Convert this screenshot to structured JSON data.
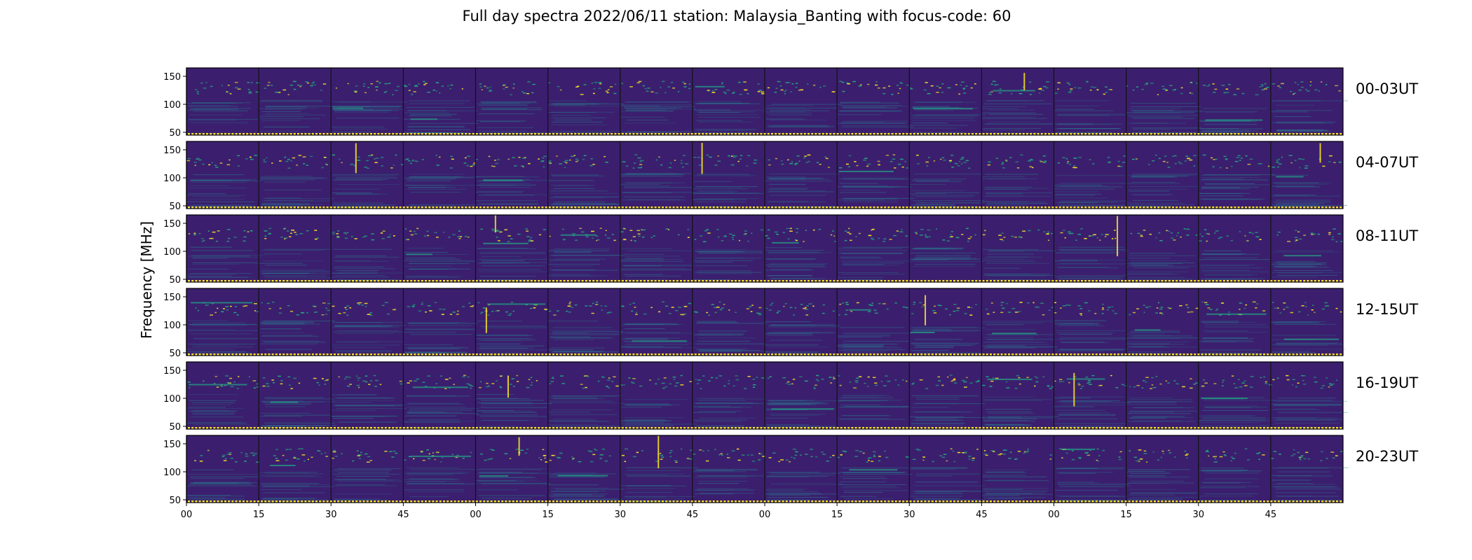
{
  "chart_data": {
    "type": "heatmap",
    "title": "Full day spectra 2022/06/11 station: Malaysia_Banting with focus-code: 60",
    "ylabel": "Frequency [MHz]",
    "ylim": [
      45,
      165
    ],
    "y_ticks": [
      "50",
      "100",
      "150"
    ],
    "x_tick_labels": [
      "00",
      "15",
      "30",
      "45",
      "00",
      "15",
      "30",
      "45",
      "00",
      "15",
      "30",
      "45",
      "00",
      "15",
      "30",
      "45"
    ],
    "rows": [
      {
        "label": "00-03UT"
      },
      {
        "label": "04-07UT"
      },
      {
        "label": "08-11UT"
      },
      {
        "label": "12-15UT"
      },
      {
        "label": "16-19UT"
      },
      {
        "label": "20-23UT"
      }
    ],
    "segments_per_row": 16,
    "segment_minutes": 15,
    "colormap": {
      "background": "#3b1f6e",
      "low": "#44276f",
      "mid": "#2a788e",
      "high": "#22a884",
      "peak": "#fde725"
    },
    "features": {
      "persistent_band_mhz": [
        118,
        142
      ],
      "bottom_marker_color": "#fde725"
    }
  }
}
